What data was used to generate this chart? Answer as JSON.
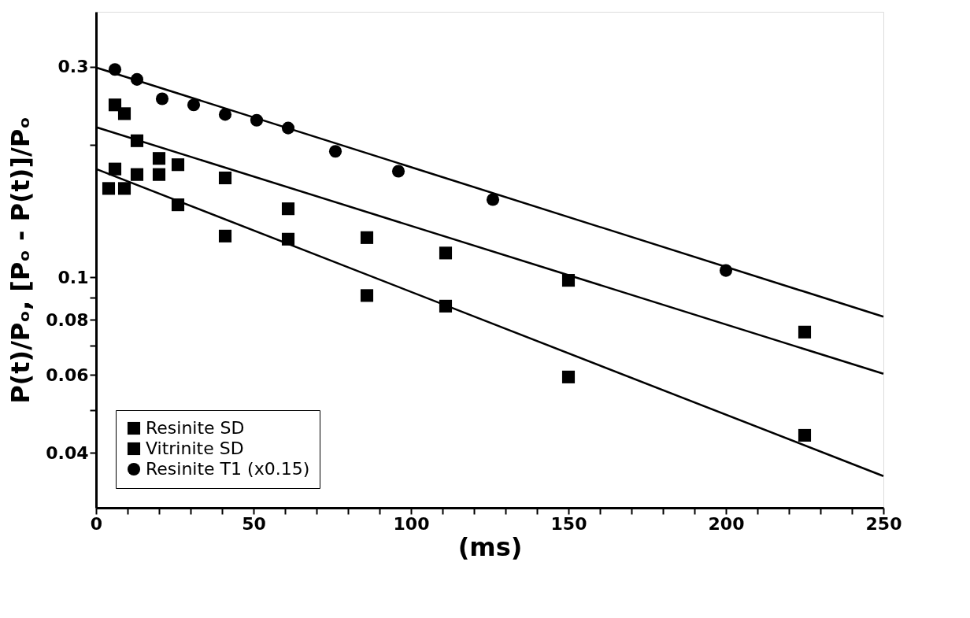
{
  "chart_data": {
    "type": "scatter",
    "xlabel": "(ms)",
    "ylabel": "P(t)/Pₒ, [Pₒ - P(t)]/Pₒ",
    "log": "y",
    "grid": false,
    "legend": "bottom left",
    "xlim": [
      0,
      250
    ],
    "ylim": [
      0.03,
      0.4
    ],
    "xticks": [
      0,
      {
        "value": 10,
        "label": null
      },
      {
        "value": 20,
        "label": null
      },
      {
        "value": 30,
        "label": null
      },
      {
        "value": 40,
        "label": null
      },
      50,
      {
        "value": 60,
        "label": null
      },
      {
        "value": 70,
        "label": null
      },
      {
        "value": 80,
        "label": null
      },
      {
        "value": 90,
        "label": null
      },
      100,
      {
        "value": 110,
        "label": null
      },
      {
        "value": 120,
        "label": null
      },
      {
        "value": 130,
        "label": null
      },
      {
        "value": 140,
        "label": null
      },
      150,
      {
        "value": 160,
        "label": null
      },
      {
        "value": 170,
        "label": null
      },
      {
        "value": 180,
        "label": null
      },
      {
        "value": 190,
        "label": null
      },
      200,
      {
        "value": 210,
        "label": null
      },
      {
        "value": 220,
        "label": null
      },
      {
        "value": 230,
        "label": null
      },
      {
        "value": 240,
        "label": null
      },
      250
    ],
    "yticks": [
      0.04,
      {
        "value": 0.05,
        "label": null
      },
      0.06,
      {
        "value": 0.07,
        "label": null
      },
      0.08,
      {
        "value": 0.09,
        "label": null
      },
      0.1,
      {
        "value": 0.2,
        "label": null
      },
      0.3
    ],
    "series": [
      {
        "name": "Resinite SD",
        "marker": "square",
        "color": "#000000",
        "x": [
          4,
          6,
          9,
          13,
          20,
          26,
          41,
          61,
          86,
          111,
          150,
          225
        ],
        "values": [
          0.159,
          0.176,
          0.159,
          0.171,
          0.171,
          0.146,
          0.124,
          0.122,
          0.0909,
          0.086,
          0.0594,
          0.0438
        ]
      },
      {
        "name": "Vitrinite SD",
        "marker": "square",
        "color": "#000000",
        "x": [
          6,
          9,
          13,
          20,
          26,
          41,
          61,
          86,
          111,
          150,
          225
        ],
        "values": [
          0.246,
          0.235,
          0.204,
          0.186,
          0.18,
          0.168,
          0.143,
          0.123,
          0.1135,
          0.0984,
          0.0751
        ]
      },
      {
        "name": "Resinite T1 (x0.15)",
        "marker": "circle",
        "color": "#000000",
        "x": [
          6,
          13,
          21,
          31,
          41,
          51,
          61,
          76,
          96,
          126,
          200
        ],
        "values": [
          0.296,
          0.281,
          0.254,
          0.246,
          0.234,
          0.227,
          0.218,
          0.193,
          0.174,
          0.15,
          0.1036
        ]
      },
      {
        "type": "line",
        "line_style": "solid",
        "color": "#000000",
        "x": [
          0,
          250
        ],
        "values": [
          0.176,
          0.0354
        ]
      },
      {
        "type": "line",
        "line_style": "solid",
        "color": "#000000",
        "x": [
          0,
          250
        ],
        "values": [
          0.219,
          0.0604
        ]
      },
      {
        "type": "line",
        "line_style": "solid",
        "color": "#000000",
        "x": [
          0,
          250
        ],
        "values": [
          0.299,
          0.0814
        ]
      }
    ]
  }
}
